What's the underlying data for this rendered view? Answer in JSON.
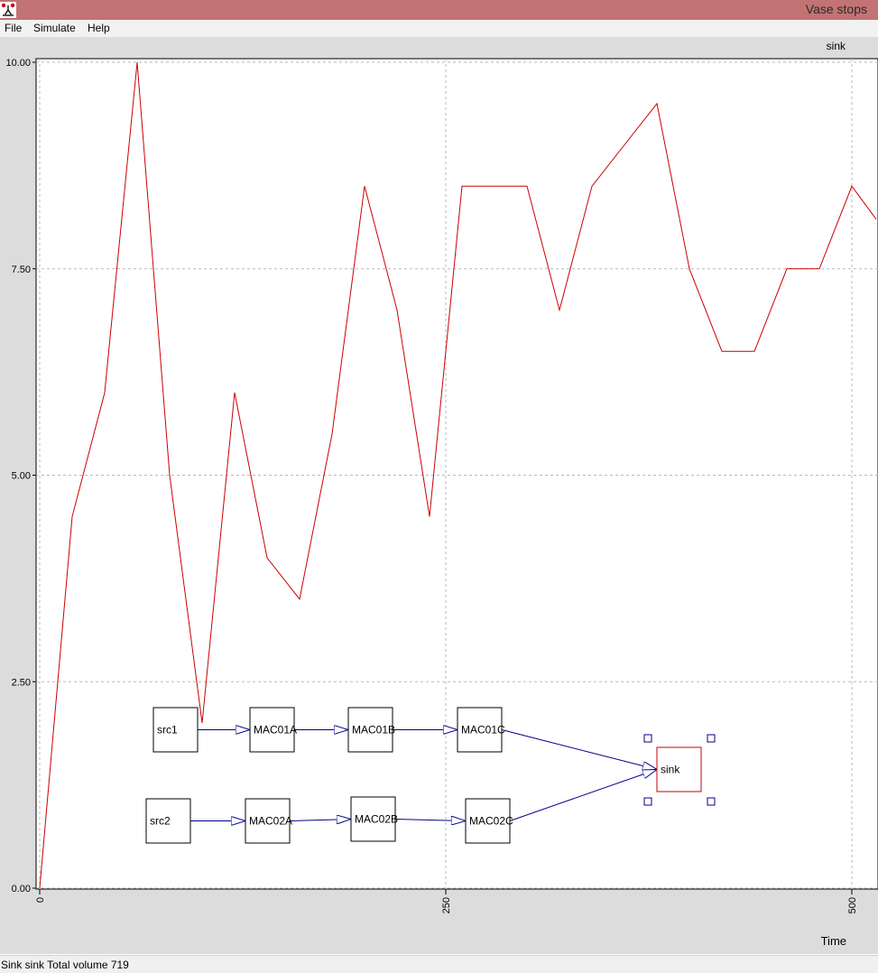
{
  "window": {
    "title": "Vase stops"
  },
  "menu": {
    "file": "File",
    "simulate": "Simulate",
    "help": "Help"
  },
  "plot_label": "sink",
  "status": "Sink sink Total volume 719",
  "chart_data": {
    "type": "line",
    "xlabel": "Time",
    "ylabel": "",
    "xlim": [
      0,
      515
    ],
    "ylim": [
      0,
      10
    ],
    "grid": true,
    "x_ticks": [
      0,
      250,
      500
    ],
    "x_tick_labels": [
      "0",
      "250",
      "500"
    ],
    "y_ticks": [
      0,
      2.5,
      5,
      7.5,
      10
    ],
    "y_tick_labels": [
      "0.00",
      "2.50",
      "5.00",
      "7.50",
      "10.00"
    ],
    "series": [
      {
        "color": "#cc0000",
        "x": [
          0,
          20,
          40,
          60,
          80,
          100,
          120,
          140,
          160,
          180,
          200,
          220,
          240,
          260,
          280,
          300,
          320,
          340,
          360,
          380,
          400,
          420,
          440,
          460,
          480,
          500,
          515
        ],
        "y": [
          0,
          4.5,
          6,
          10,
          5,
          2,
          6,
          4,
          3.5,
          5.5,
          8.5,
          7,
          4.5,
          8.5,
          8.5,
          8.5,
          7,
          8.5,
          9,
          9.5,
          7.5,
          6.5,
          6.5,
          7.5,
          7.5,
          8.5,
          8.1
        ]
      }
    ]
  },
  "diagram": {
    "nodes": [
      {
        "id": "src1",
        "label": "src1"
      },
      {
        "id": "MAC01A",
        "label": "MAC01A"
      },
      {
        "id": "MAC01B",
        "label": "MAC01B"
      },
      {
        "id": "MAC01C",
        "label": "MAC01C"
      },
      {
        "id": "src2",
        "label": "src2"
      },
      {
        "id": "MAC02A",
        "label": "MAC02A"
      },
      {
        "id": "MAC02B",
        "label": "MAC02B"
      },
      {
        "id": "MAC02C",
        "label": "MAC02C"
      },
      {
        "id": "sink",
        "label": "sink",
        "selected": true
      }
    ],
    "edges": [
      [
        "src1",
        "MAC01A"
      ],
      [
        "MAC01A",
        "MAC01B"
      ],
      [
        "MAC01B",
        "MAC01C"
      ],
      [
        "MAC01C",
        "sink"
      ],
      [
        "src2",
        "MAC02A"
      ],
      [
        "MAC02A",
        "MAC02B"
      ],
      [
        "MAC02B",
        "MAC02C"
      ],
      [
        "MAC02C",
        "sink"
      ]
    ],
    "colors": {
      "edge": "#00008b",
      "node_border": "#000000",
      "selected_border": "#cc0000",
      "handle": "#00008b"
    }
  }
}
